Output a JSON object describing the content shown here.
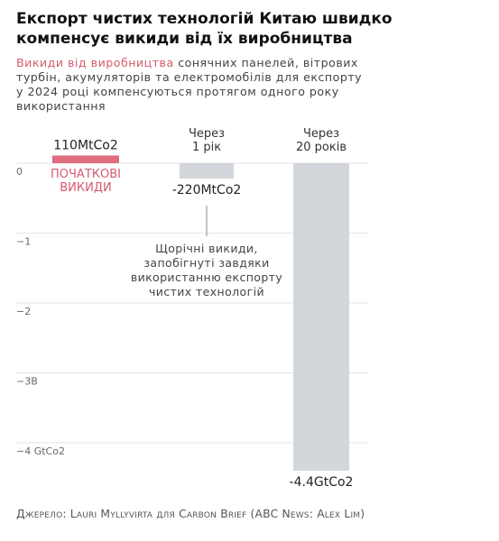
{
  "title_line1": "Експорт чистих технологій Китаю швидко",
  "title_line2": "компенсує викиди від їх виробництва",
  "subtitle_highlight": "Викиди від виробництва",
  "subtitle_line1_rest": " сонячних панелей, вітрових",
  "subtitle_line2": "турбін, акумуляторів та електромобілів для експорту",
  "subtitle_line3": "у 2024 році компенсуються протягом одного року",
  "subtitle_line4": "використання",
  "source": "Джерело: Lauri Myllyvirta для Carbon Brief (ABC News: Alex Lim)",
  "colors": {
    "positive": "#e06d80",
    "negative": "#d3d7dc",
    "highlight": "#d55a6f"
  },
  "chart_data": {
    "type": "bar",
    "unit": "GtCo2",
    "ylim": [
      -4.4,
      0.1
    ],
    "yticks": [
      {
        "value": 0,
        "label": "0"
      },
      {
        "value": -1,
        "label": "−1"
      },
      {
        "value": -2,
        "label": "−2"
      },
      {
        "value": -3,
        "label": "−3B"
      },
      {
        "value": -4,
        "label": "−4 GtCo2"
      }
    ],
    "grid": true,
    "categories": [
      {
        "header": [
          "",
          ""
        ],
        "value": 0.11,
        "value_label": "110MtCo2",
        "sublabel": [
          "ПОЧАТКОВІ",
          "ВИКИДИ"
        ],
        "color": "#e06d80"
      },
      {
        "header": [
          "Через",
          "1 рік"
        ],
        "value": -0.22,
        "value_label": "-220MtCo2",
        "color": "#d3d7dc"
      },
      {
        "header": [
          "Через",
          "20 років"
        ],
        "value": -4.4,
        "value_label": "-4.4GtCo2",
        "color": "#d3d7dc"
      }
    ],
    "annotation": [
      "Щорічні викиди,",
      "запобігнуті завдяки",
      "використанню експорту",
      "чистих технологій"
    ]
  }
}
